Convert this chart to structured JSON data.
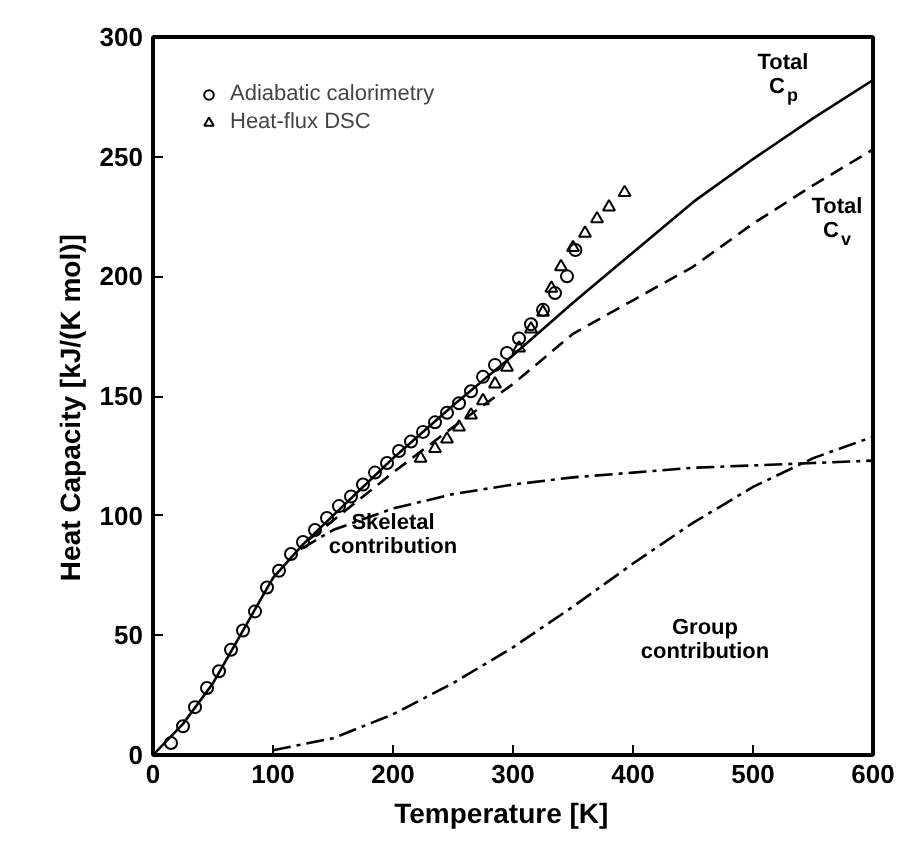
{
  "chart_data": {
    "type": "line",
    "xlabel": "Temperature    [K]",
    "ylabel": "Heat Capacity    [kJ/(K mol)]",
    "xlim": [
      0,
      600
    ],
    "ylim": [
      0,
      300
    ],
    "xticks": [
      0,
      100,
      200,
      300,
      400,
      500,
      600
    ],
    "yticks": [
      0,
      50,
      100,
      150,
      200,
      250,
      300
    ],
    "grid": false,
    "legend": "top left",
    "series": [
      {
        "type": "scatter",
        "name": "Adiabatic calorimetry",
        "marker": "circle",
        "color": "#000000",
        "x": [
          15,
          25,
          35,
          45,
          55,
          65,
          75,
          85,
          95,
          105,
          115,
          125,
          135,
          145,
          155,
          165,
          175,
          185,
          195,
          205,
          215,
          225,
          235,
          245,
          255,
          265,
          275,
          285,
          295,
          305,
          315,
          325,
          335,
          345,
          352
        ],
        "values": [
          5,
          12,
          20,
          28,
          35,
          44,
          52,
          60,
          70,
          77,
          84,
          89,
          94,
          99,
          104,
          108,
          113,
          118,
          122,
          127,
          131,
          135,
          139,
          143,
          147,
          152,
          158,
          163,
          168,
          174,
          180,
          186,
          193,
          200,
          211
        ]
      },
      {
        "type": "scatter",
        "name": "Heat-flux DSC",
        "marker": "triangle",
        "color": "#000000",
        "x": [
          223,
          235,
          245,
          255,
          265,
          275,
          285,
          295,
          305,
          315,
          325,
          332,
          340,
          350,
          360,
          370,
          380,
          393
        ],
        "values": [
          124,
          128,
          132,
          137,
          142,
          148,
          155,
          162,
          170,
          178,
          185,
          195,
          204,
          212,
          218,
          224,
          229,
          235
        ]
      },
      {
        "line_style": "solid",
        "color": "#000000",
        "x": [
          0,
          25,
          50,
          75,
          100,
          125,
          150,
          200,
          250,
          300,
          350,
          400,
          450,
          500,
          550,
          600
        ],
        "values": [
          0,
          13,
          30,
          52,
          74,
          88,
          100,
          124,
          146,
          167,
          189,
          210,
          231,
          249,
          266,
          282
        ]
      },
      {
        "line_style": "dashed",
        "color": "#000000",
        "x": [
          130,
          150,
          200,
          250,
          300,
          350,
          400,
          450,
          500,
          550,
          600
        ],
        "values": [
          90,
          98,
          118,
          137,
          155,
          176,
          190,
          204,
          222,
          238,
          253
        ]
      },
      {
        "line_style": "dashdot",
        "color": "#000000",
        "x": [
          123,
          150,
          200,
          250,
          300,
          350,
          400,
          450,
          500,
          550,
          600
        ],
        "values": [
          86,
          94,
          103,
          109,
          113,
          116,
          118,
          120,
          121,
          122,
          123
        ]
      },
      {
        "line_style": "dashdot",
        "color": "#000000",
        "x": [
          100,
          150,
          200,
          250,
          300,
          350,
          400,
          450,
          500,
          550,
          600
        ],
        "values": [
          2,
          7,
          17,
          30,
          45,
          62,
          80,
          97,
          112,
          124,
          133
        ]
      }
    ],
    "annotations": [
      "Total C$_{p}$",
      "Total C$_{v}$",
      "Skeletal contribution",
      "Group contribution"
    ]
  }
}
